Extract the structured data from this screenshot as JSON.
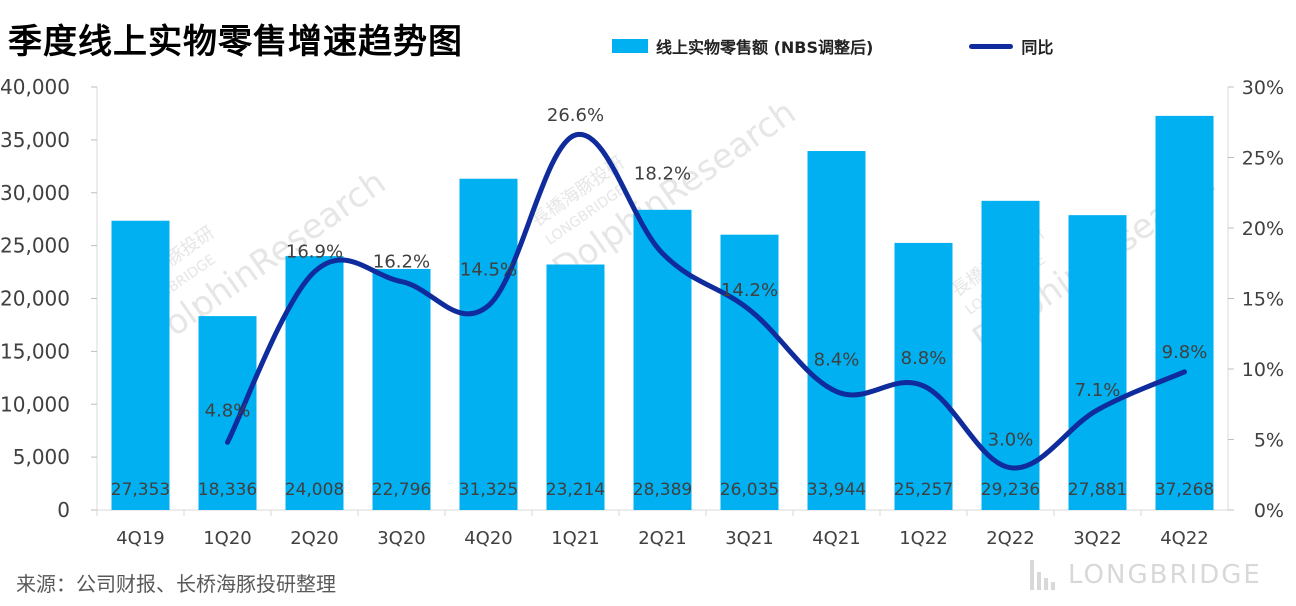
{
  "title": "季度线上实物零售增速趋势图",
  "legend": {
    "bar_label": "线上实物零售额 (NBS调整后)",
    "line_label": "同比"
  },
  "colors": {
    "bar": "#00B0F0",
    "line": "#0F2B9C",
    "axis_text": "#404040",
    "label_text": "#404040",
    "watermark": "#e6e6e6"
  },
  "source": "来源：公司财报、长桥海豚投研整理",
  "brand": "LONGBRIDGE",
  "watermark": {
    "cn": "長橋海豚投研",
    "en1": "LONGBRIDGE",
    "en2": "DolphinResearch"
  },
  "chart_data": {
    "type": "bar+line",
    "title": "季度线上实物零售增速趋势图",
    "categories": [
      "4Q19",
      "1Q20",
      "2Q20",
      "3Q20",
      "4Q20",
      "1Q21",
      "2Q21",
      "3Q21",
      "4Q21",
      "1Q22",
      "2Q22",
      "3Q22",
      "4Q22"
    ],
    "series": [
      {
        "name": "线上实物零售额 (NBS调整后)",
        "type": "bar",
        "axis": "left",
        "values": [
          27353,
          18336,
          24008,
          22796,
          31325,
          23214,
          28389,
          26035,
          33944,
          25257,
          29236,
          27881,
          37268
        ],
        "value_labels": [
          "27,353",
          "18,336",
          "24,008",
          "22,796",
          "31,325",
          "23,214",
          "28,389",
          "26,035",
          "33,944",
          "25,257",
          "29,236",
          "27,881",
          "37,268"
        ]
      },
      {
        "name": "同比",
        "type": "line",
        "axis": "right",
        "values": [
          null,
          4.8,
          16.9,
          16.2,
          14.5,
          26.6,
          18.2,
          14.2,
          8.4,
          8.8,
          3.0,
          7.1,
          9.8
        ],
        "value_labels": [
          null,
          "4.8%",
          "16.9%",
          "16.2%",
          "14.5%",
          "26.6%",
          "18.2%",
          "14.2%",
          "8.4%",
          "8.8%",
          "3.0%",
          "7.1%",
          "9.8%"
        ]
      }
    ],
    "y_left": {
      "min": 0,
      "max": 40000,
      "ticks": [
        "0",
        "5,000",
        "10,000",
        "15,000",
        "20,000",
        "25,000",
        "30,000",
        "35,000",
        "40,000"
      ]
    },
    "y_right": {
      "min": 0,
      "max": 30,
      "ticks": [
        "0%",
        "5%",
        "10%",
        "15%",
        "20%",
        "25%",
        "30%"
      ]
    },
    "legend_position": "top-right"
  }
}
